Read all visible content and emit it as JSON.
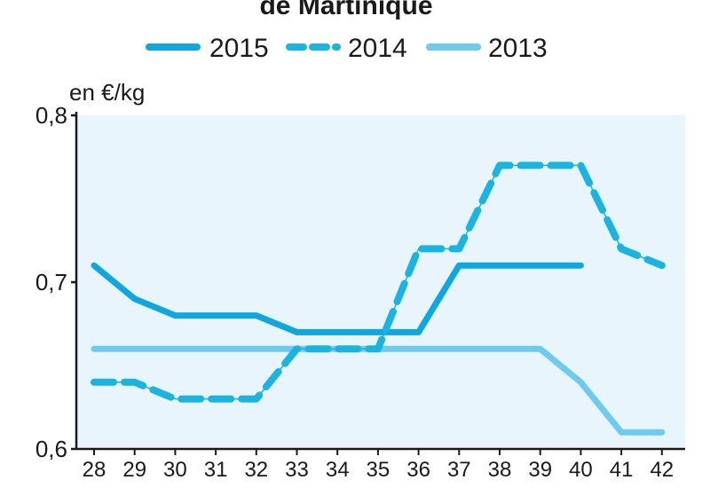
{
  "chart_data": {
    "type": "line",
    "title": "de Martinique",
    "ylabel": "en €/kg",
    "ylim": [
      0.6,
      0.8
    ],
    "yticks": [
      {
        "value": 0.6,
        "label": "0,6"
      },
      {
        "value": 0.7,
        "label": "0,7"
      },
      {
        "value": 0.8,
        "label": "0,8"
      }
    ],
    "categories": [
      "28",
      "29",
      "30",
      "31",
      "32",
      "33",
      "34",
      "35",
      "36",
      "37",
      "38",
      "39",
      "40",
      "41",
      "42"
    ],
    "grid": false,
    "legend_position": "top",
    "colors": {
      "background": "#e8f5fc",
      "axis": "#1a1a1a",
      "s2015": "#0fa7df",
      "s2014": "#1ab4e3",
      "s2013": "#6ccbef"
    },
    "series": [
      {
        "name": "2015",
        "style": "solid",
        "values": [
          0.71,
          0.69,
          0.68,
          0.68,
          0.68,
          0.67,
          0.67,
          0.67,
          0.67,
          0.71,
          0.71,
          0.71,
          0.71,
          null,
          null
        ]
      },
      {
        "name": "2014",
        "style": "dashed",
        "values": [
          0.64,
          0.64,
          0.63,
          0.63,
          0.63,
          0.66,
          0.66,
          0.66,
          0.72,
          0.72,
          0.77,
          0.77,
          0.77,
          0.72,
          0.71
        ]
      },
      {
        "name": "2013",
        "style": "solid-light",
        "values": [
          0.66,
          0.66,
          0.66,
          0.66,
          0.66,
          0.66,
          0.66,
          0.66,
          0.66,
          0.66,
          0.66,
          0.66,
          0.64,
          0.61,
          0.61
        ]
      }
    ]
  }
}
